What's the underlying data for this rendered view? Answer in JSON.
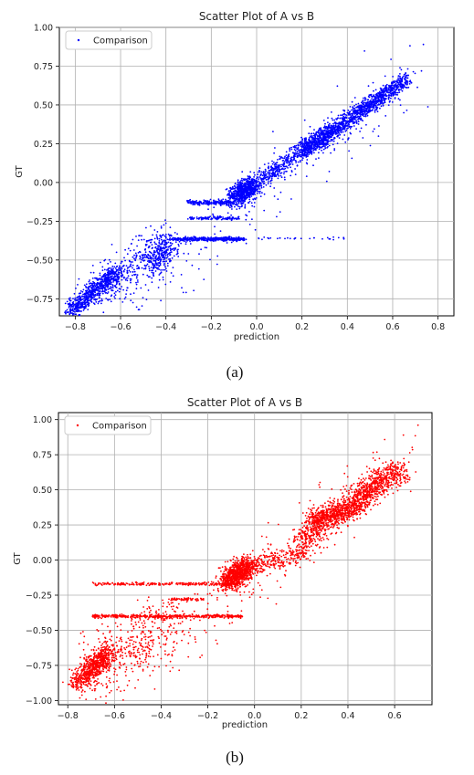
{
  "chart_data": [
    {
      "type": "scatter",
      "panel": "(a)",
      "title": "Scatter Plot of A vs B",
      "xlabel": "prediction",
      "ylabel": "GT",
      "xlim": [
        -0.87,
        0.87
      ],
      "ylim": [
        -0.86,
        1.0
      ],
      "xticks": [
        -0.8,
        -0.6,
        -0.4,
        -0.2,
        0.0,
        0.2,
        0.4,
        0.6,
        0.8
      ],
      "xtick_labels": [
        "−0.8",
        "−0.6",
        "−0.4",
        "−0.2",
        "0.0",
        "0.2",
        "0.4",
        "0.6",
        "0.8"
      ],
      "yticks": [
        -0.75,
        -0.5,
        -0.25,
        0.0,
        0.25,
        0.5,
        0.75,
        1.0
      ],
      "ytick_labels": [
        "−0.75",
        "−0.50",
        "−0.25",
        "0.00",
        "0.25",
        "0.50",
        "0.75",
        "1.00"
      ],
      "grid": true,
      "legend": "top-left",
      "series": [
        {
          "name": "Comparison",
          "color": "#0000ff",
          "clusters": [
            {
              "from": [
                -0.82,
                -0.83
              ],
              "to": [
                -0.62,
                -0.58
              ],
              "spread": 0.03,
              "n": 650
            },
            {
              "from": [
                -0.72,
                -0.72
              ],
              "to": [
                -0.4,
                -0.4
              ],
              "spread": 0.07,
              "n": 380
            },
            {
              "from": [
                -0.45,
                -0.52
              ],
              "to": [
                -0.38,
                -0.38
              ],
              "spread": 0.05,
              "n": 250
            },
            {
              "from": [
                -0.36,
                -0.365
              ],
              "to": [
                -0.05,
                -0.365
              ],
              "spread": 0.006,
              "n": 400
            },
            {
              "from": [
                -0.3,
                -0.23
              ],
              "to": [
                -0.08,
                -0.23
              ],
              "spread": 0.005,
              "n": 120
            },
            {
              "from": [
                -0.3,
                -0.13
              ],
              "to": [
                -0.1,
                -0.13
              ],
              "spread": 0.008,
              "n": 200
            },
            {
              "from": [
                -0.1,
                -0.1
              ],
              "to": [
                -0.02,
                -0.02
              ],
              "spread": 0.035,
              "n": 650
            },
            {
              "from": [
                -0.05,
                -0.05
              ],
              "to": [
                0.35,
                0.35
              ],
              "spread": 0.03,
              "n": 650
            },
            {
              "from": [
                0.2,
                0.2
              ],
              "to": [
                0.45,
                0.45
              ],
              "spread": 0.03,
              "n": 700
            },
            {
              "from": [
                0.45,
                0.45
              ],
              "to": [
                0.66,
                0.66
              ],
              "spread": 0.025,
              "n": 650
            },
            {
              "from": [
                -0.6,
                -0.8
              ],
              "to": [
                0.7,
                0.7
              ],
              "spread": 0.1,
              "n": 200
            },
            {
              "from": [
                0.0,
                -0.36
              ],
              "to": [
                0.4,
                -0.36
              ],
              "spread": 0.004,
              "n": 30
            }
          ]
        }
      ]
    },
    {
      "type": "scatter",
      "panel": "(b)",
      "title": "Scatter Plot of A vs B",
      "xlabel": "prediction",
      "ylabel": "GT",
      "xlim": [
        -0.84,
        0.76
      ],
      "ylim": [
        -1.03,
        1.05
      ],
      "xticks": [
        -0.8,
        -0.6,
        -0.4,
        -0.2,
        0.0,
        0.2,
        0.4,
        0.6
      ],
      "xtick_labels": [
        "−0.8",
        "−0.6",
        "−0.4",
        "−0.2",
        "0.0",
        "0.2",
        "0.4",
        "0.6"
      ],
      "yticks": [
        -1.0,
        -0.75,
        -0.5,
        -0.25,
        0.0,
        0.25,
        0.5,
        0.75,
        1.0
      ],
      "ytick_labels": [
        "−1.00",
        "−0.75",
        "−0.50",
        "−0.25",
        "0.00",
        "0.25",
        "0.50",
        "0.75",
        "1.00"
      ],
      "grid": true,
      "legend": "top-left",
      "series": [
        {
          "name": "Comparison",
          "color": "#ff0000",
          "clusters": [
            {
              "from": [
                -0.76,
                -0.88
              ],
              "to": [
                -0.62,
                -0.65
              ],
              "spread": 0.035,
              "n": 650
            },
            {
              "from": [
                -0.72,
                -0.85
              ],
              "to": [
                -0.35,
                -0.4
              ],
              "spread": 0.1,
              "n": 450
            },
            {
              "from": [
                -0.7,
                -0.4
              ],
              "to": [
                -0.05,
                -0.4
              ],
              "spread": 0.006,
              "n": 450
            },
            {
              "from": [
                -0.7,
                -0.17
              ],
              "to": [
                -0.05,
                -0.17
              ],
              "spread": 0.005,
              "n": 250
            },
            {
              "from": [
                -0.36,
                -0.28
              ],
              "to": [
                -0.22,
                -0.28
              ],
              "spread": 0.005,
              "n": 60
            },
            {
              "from": [
                -0.12,
                -0.15
              ],
              "to": [
                -0.03,
                -0.05
              ],
              "spread": 0.04,
              "n": 800
            },
            {
              "from": [
                -0.05,
                -0.06
              ],
              "to": [
                0.22,
                0.06
              ],
              "spread": 0.035,
              "n": 300
            },
            {
              "from": [
                0.2,
                0.1
              ],
              "to": [
                0.3,
                0.3
              ],
              "spread": 0.05,
              "n": 250
            },
            {
              "from": [
                0.25,
                0.27
              ],
              "to": [
                0.45,
                0.4
              ],
              "spread": 0.04,
              "n": 750
            },
            {
              "from": [
                0.45,
                0.45
              ],
              "to": [
                0.62,
                0.65
              ],
              "spread": 0.045,
              "n": 600
            },
            {
              "from": [
                -0.5,
                -0.8
              ],
              "to": [
                0.65,
                0.75
              ],
              "spread": 0.1,
              "n": 250
            },
            {
              "from": [
                0.7,
                0.96
              ],
              "to": [
                0.7,
                0.96
              ],
              "spread": 0.0,
              "n": 1
            }
          ]
        }
      ]
    }
  ],
  "captions": [
    "(a)",
    "(b)"
  ]
}
